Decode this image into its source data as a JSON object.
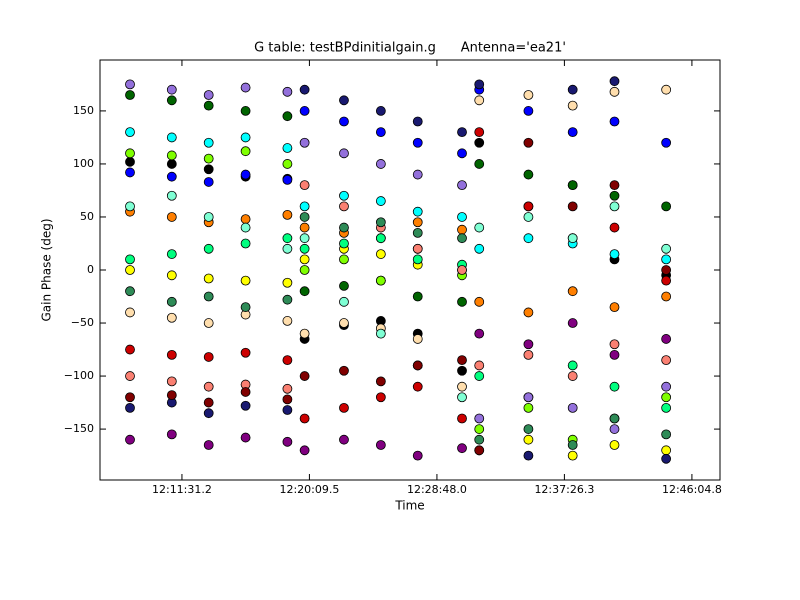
{
  "chart_data": {
    "type": "scatter",
    "title": "G table: testBPdinitialgain.g      Antenna='ea21'",
    "x_label": "Time",
    "y_label": "Gain Phase (deg)",
    "xlim": [
      43558,
      46079
    ],
    "ylim": [
      -198,
      198
    ],
    "xticks": [
      {
        "value": 43891.2,
        "label": "12:11:31.2"
      },
      {
        "value": 44409.5,
        "label": "12:20:09.5"
      },
      {
        "value": 44928.0,
        "label": "12:28:48.0"
      },
      {
        "value": 45446.3,
        "label": "12:37:26.3"
      },
      {
        "value": 45964.8,
        "label": "12:46:04.8"
      }
    ],
    "yticks": [
      {
        "value": -150,
        "label": "−150"
      },
      {
        "value": -100,
        "label": "−100"
      },
      {
        "value": -50,
        "label": "−50"
      },
      0,
      50,
      100,
      150
    ],
    "x": [
      43680,
      43850,
      44000,
      44150,
      44320,
      44390,
      44550,
      44700,
      44850,
      45030,
      45100,
      45300,
      45480,
      45650,
      45860
    ],
    "series": [
      {
        "color": "#000000",
        "values": [
          102,
          100,
          95,
          88,
          86,
          -65,
          -52,
          -48,
          -60,
          -95,
          120,
          60,
          30,
          10,
          -5
        ]
      },
      {
        "color": "#0000ff",
        "values": [
          92,
          88,
          83,
          90,
          85,
          150,
          140,
          130,
          120,
          110,
          170,
          150,
          130,
          140,
          120
        ]
      },
      {
        "color": "#cc0000",
        "values": [
          -75,
          -80,
          -82,
          -78,
          -85,
          -140,
          -130,
          -120,
          -110,
          -140,
          130,
          60,
          80,
          40,
          -10
        ]
      },
      {
        "color": "#ffff00",
        "values": [
          0,
          -5,
          -8,
          -10,
          -12,
          10,
          20,
          15,
          5,
          0,
          -170,
          -160,
          -175,
          -165,
          -170
        ]
      },
      {
        "color": "#00ffff",
        "values": [
          130,
          125,
          120,
          125,
          115,
          60,
          70,
          65,
          55,
          50,
          20,
          30,
          25,
          15,
          10
        ]
      },
      {
        "color": "#ff7f00",
        "values": [
          55,
          50,
          45,
          48,
          52,
          40,
          35,
          30,
          45,
          38,
          -30,
          -40,
          -20,
          -35,
          -25
        ]
      },
      {
        "color": "#006400",
        "values": [
          165,
          160,
          155,
          150,
          145,
          -20,
          -15,
          -10,
          -25,
          -30,
          100,
          90,
          80,
          70,
          60
        ]
      },
      {
        "color": "#800080",
        "values": [
          -160,
          -155,
          -165,
          -158,
          -162,
          -170,
          -160,
          -165,
          -175,
          -168,
          -60,
          -70,
          -50,
          -80,
          -65
        ]
      },
      {
        "color": "#00ff7f",
        "values": [
          10,
          15,
          20,
          25,
          30,
          20,
          25,
          30,
          10,
          5,
          -100,
          -120,
          -90,
          -110,
          -130
        ]
      },
      {
        "color": "#191970",
        "values": [
          -130,
          -125,
          -135,
          -128,
          -132,
          170,
          160,
          150,
          140,
          130,
          175,
          -175,
          170,
          178,
          -178
        ]
      },
      {
        "color": "#ffdead",
        "values": [
          -40,
          -45,
          -50,
          -42,
          -48,
          -60,
          -50,
          -55,
          -65,
          -110,
          160,
          165,
          155,
          168,
          170
        ]
      },
      {
        "color": "#7fffd4",
        "values": [
          60,
          70,
          50,
          40,
          20,
          30,
          -30,
          -60,
          -90,
          -120,
          40,
          50,
          30,
          60,
          20
        ]
      },
      {
        "color": "#7fff00",
        "values": [
          110,
          108,
          105,
          112,
          100,
          0,
          10,
          -10,
          20,
          -5,
          -150,
          -130,
          -160,
          -140,
          -120
        ]
      },
      {
        "color": "#fa8072",
        "values": [
          -100,
          -105,
          -110,
          -108,
          -112,
          80,
          60,
          40,
          20,
          0,
          -90,
          -80,
          -100,
          -70,
          -85
        ]
      },
      {
        "color": "#9370db",
        "values": [
          175,
          170,
          165,
          172,
          168,
          120,
          110,
          100,
          90,
          80,
          -140,
          -120,
          -130,
          -150,
          -110
        ]
      },
      {
        "color": "#2e8b57",
        "values": [
          -20,
          -30,
          -25,
          -35,
          -28,
          50,
          40,
          45,
          35,
          30,
          -160,
          -150,
          -165,
          -140,
          -155
        ]
      },
      {
        "color": "#800000",
        "values": [
          -120,
          -118,
          -125,
          -115,
          -122,
          -100,
          -95,
          -105,
          -90,
          -85,
          -170,
          120,
          60,
          80,
          0
        ]
      }
    ]
  }
}
